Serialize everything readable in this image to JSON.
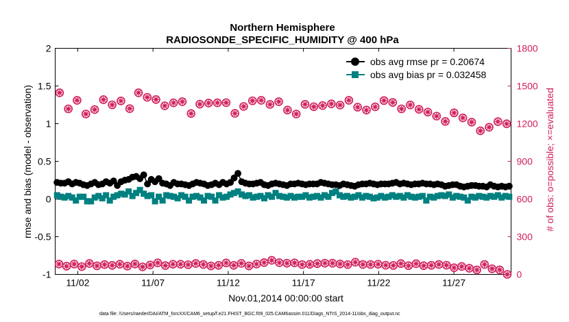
{
  "chart_data": {
    "type": "line",
    "title": "Northern Hemisphere",
    "subtitle": "RADIOSONDE_SPECIFIC_HUMIDITY @ 400 hPa",
    "xlabel": "Nov.01,2014 00:00:00 start",
    "ylabel_left": "rmse and bias (model - observation)",
    "ylabel_right": "# of obs: o=possible; ×=evaluated",
    "xlim": [
      0.5,
      30.8
    ],
    "ylim_left": [
      -1,
      2
    ],
    "ylim_right": [
      0,
      1800
    ],
    "x_ticks": [
      {
        "x": 2,
        "label": "11/02"
      },
      {
        "x": 7,
        "label": "11/07"
      },
      {
        "x": 12,
        "label": "11/12"
      },
      {
        "x": 17,
        "label": "11/17"
      },
      {
        "x": 22,
        "label": "11/22"
      },
      {
        "x": 27,
        "label": "11/27"
      }
    ],
    "y_ticks_left": [
      {
        "v": -1,
        "label": "-1"
      },
      {
        "v": -0.5,
        "label": "-0.5"
      },
      {
        "v": 0,
        "label": "0"
      },
      {
        "v": 0.5,
        "label": "0.5"
      },
      {
        "v": 1,
        "label": "1"
      },
      {
        "v": 1.5,
        "label": "1.5"
      },
      {
        "v": 2,
        "label": "2"
      }
    ],
    "y_ticks_right": [
      {
        "v": 0,
        "label": "0"
      },
      {
        "v": 300,
        "label": "300"
      },
      {
        "v": 600,
        "label": "600"
      },
      {
        "v": 900,
        "label": "900"
      },
      {
        "v": 1200,
        "label": "1200"
      },
      {
        "v": 1500,
        "label": "1500"
      },
      {
        "v": 1800,
        "label": "1800"
      }
    ],
    "legend": [
      "obs avg rmse pr = 0.20674",
      "obs avg bias pr = 0.032458"
    ],
    "footnote": "data file: /Users/raeder/DAI/ATM_forcXX/CAM6_setup/f.e21.FHIST_BGC.f09_025.CAM6assim.011/Diags_NTrS_2014-11/obs_diag_output.nc",
    "colors": {
      "rmse": "#000000",
      "bias": "#008080",
      "obs": "#d01c5b"
    },
    "series": [
      {
        "name": "rmse",
        "values": [
          0.22,
          0.21,
          0.21,
          0.23,
          0.2,
          0.22,
          0.21,
          0.19,
          0.18,
          0.2,
          0.22,
          0.19,
          0.2,
          0.23,
          0.21,
          0.24,
          0.18,
          0.23,
          0.25,
          0.26,
          0.29,
          0.3,
          0.27,
          0.32,
          0.2,
          0.26,
          0.23,
          0.27,
          0.21,
          0.2,
          0.18,
          0.22,
          0.2,
          0.2,
          0.19,
          0.18,
          0.2,
          0.22,
          0.21,
          0.2,
          0.18,
          0.19,
          0.21,
          0.19,
          0.22,
          0.2,
          0.22,
          0.28,
          0.34,
          0.23,
          0.21,
          0.2,
          0.2,
          0.21,
          0.22,
          0.19,
          0.18,
          0.2,
          0.21,
          0.2,
          0.19,
          0.18,
          0.2,
          0.2,
          0.21,
          0.2,
          0.19,
          0.2,
          0.2,
          0.2,
          0.22,
          0.21,
          0.2,
          0.19,
          0.19,
          0.18,
          0.2,
          0.19,
          0.18,
          0.17,
          0.19,
          0.2,
          0.2,
          0.21,
          0.2,
          0.19,
          0.2,
          0.2,
          0.2,
          0.21,
          0.22,
          0.2,
          0.21,
          0.2,
          0.19,
          0.2,
          0.2,
          0.21,
          0.2,
          0.2,
          0.19,
          0.2,
          0.19,
          0.17,
          0.18,
          0.19,
          0.19,
          0.17,
          0.16,
          0.17,
          0.18,
          0.18,
          0.17,
          0.17,
          0.16,
          0.19,
          0.17,
          0.16,
          0.17,
          0.16,
          0.17
        ]
      },
      {
        "name": "bias",
        "values": [
          0.05,
          0.03,
          0.02,
          0.04,
          0.02,
          -0.02,
          0.03,
          0.03,
          -0.03,
          -0.03,
          0.02,
          0.04,
          0.01,
          0.05,
          -0.02,
          0.03,
          0.05,
          0.07,
          0.06,
          0.1,
          0.04,
          0.08,
          0.12,
          0.07,
          0.04,
          0.05,
          -0.03,
          0.03,
          -0.02,
          0.05,
          0.04,
          0.03,
          0.01,
          0.05,
          0.03,
          -0.02,
          0.03,
          0.04,
          0.02,
          -0.02,
          0.04,
          0.03,
          -0.02,
          0.05,
          0.02,
          0.03,
          0.06,
          0.08,
          0.1,
          0.06,
          0.04,
          0.05,
          0.02,
          0.03,
          0.04,
          0.01,
          0.05,
          0.03,
          0.08,
          0.04,
          0.03,
          0.02,
          0.04,
          0.02,
          0.03,
          0.03,
          0.05,
          0.02,
          0.03,
          0.04,
          0.02,
          0.05,
          0.03,
          0.08,
          0.1,
          0.05,
          0.03,
          0.04,
          0.02,
          0.03,
          0.05,
          0.02,
          0.04,
          0.03,
          0.01,
          0.02,
          0.04,
          0.02,
          0.03,
          0.05,
          0.03,
          0.04,
          0.02,
          0.05,
          0.03,
          0.02,
          0.03,
          0.04,
          -0.02,
          0.03,
          0.02,
          0.04,
          0.05,
          0.04,
          0.06,
          0.02,
          0.04,
          0.03,
          0.02,
          -0.02,
          0.03,
          0.02,
          0.04,
          0.03,
          0.02,
          0.04,
          0.03,
          0.05,
          0.02,
          0.04,
          0.03
        ]
      },
      {
        "name": "obs_possible_00Z",
        "values": [
          1446,
          1318,
          1386,
          1277,
          1312,
          1391,
          1350,
          1381,
          1320,
          1446,
          1410,
          1392,
          1342,
          1366,
          1375,
          1281,
          1355,
          1364,
          1366,
          1367,
          1282,
          1337,
          1382,
          1386,
          1353,
          1375,
          1308,
          1277,
          1354,
          1335,
          1344,
          1358,
          1348,
          1386,
          1331,
          1308,
          1334,
          1384,
          1369,
          1318,
          1349,
          1314,
          1292,
          1260,
          1218,
          1286,
          1246,
          1212,
          1143,
          1172,
          1216,
          1199
        ]
      },
      {
        "name": "obs_possible_12Z",
        "values": [
          82,
          65,
          82,
          62,
          87,
          68,
          78,
          72,
          81,
          66,
          83,
          60,
          75,
          92,
          70,
          81,
          81,
          77,
          87,
          79,
          67,
          72,
          91,
          72,
          88,
          67,
          82,
          94,
          112,
          93,
          89,
          92,
          78,
          80,
          86,
          89,
          89,
          83,
          78,
          97,
          79,
          79,
          81,
          73,
          71,
          86,
          69,
          85,
          69,
          72,
          79,
          73,
          53,
          63,
          49,
          36,
          79,
          45,
          36,
          0
        ]
      }
    ]
  }
}
